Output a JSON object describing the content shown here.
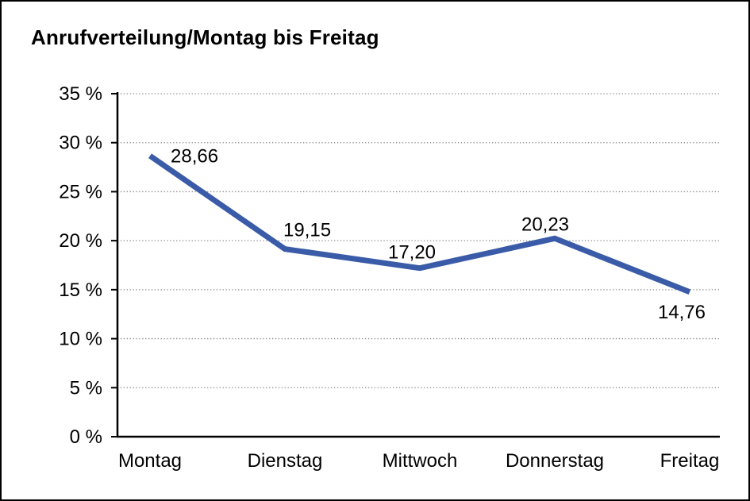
{
  "chart_data": {
    "type": "line",
    "title": "Anrufverteilung/Montag bis Freitag",
    "categories": [
      "Montag",
      "Dienstag",
      "Mittwoch",
      "Donnerstag",
      "Freitag"
    ],
    "values": [
      28.66,
      19.15,
      17.2,
      20.23,
      14.76
    ],
    "value_labels": [
      "28,66",
      "19,15",
      "17,20",
      "20,23",
      "14,76"
    ],
    "ytick_values": [
      0,
      5,
      10,
      15,
      20,
      25,
      30,
      35
    ],
    "ytick_labels": [
      "0 %",
      "5 %",
      "10 %",
      "15 %",
      "20 %",
      "25 %",
      "30 %",
      "35 %"
    ],
    "ylim": [
      0,
      35
    ],
    "xlabel": "",
    "ylabel": "",
    "grid": "horizontal-dotted",
    "legend": "none",
    "colors": {
      "line": "#3A5BA8",
      "grid": "#888888",
      "axis": "#000000",
      "text": "#000000",
      "background": "#FFFFFF",
      "border": "#000000"
    }
  }
}
